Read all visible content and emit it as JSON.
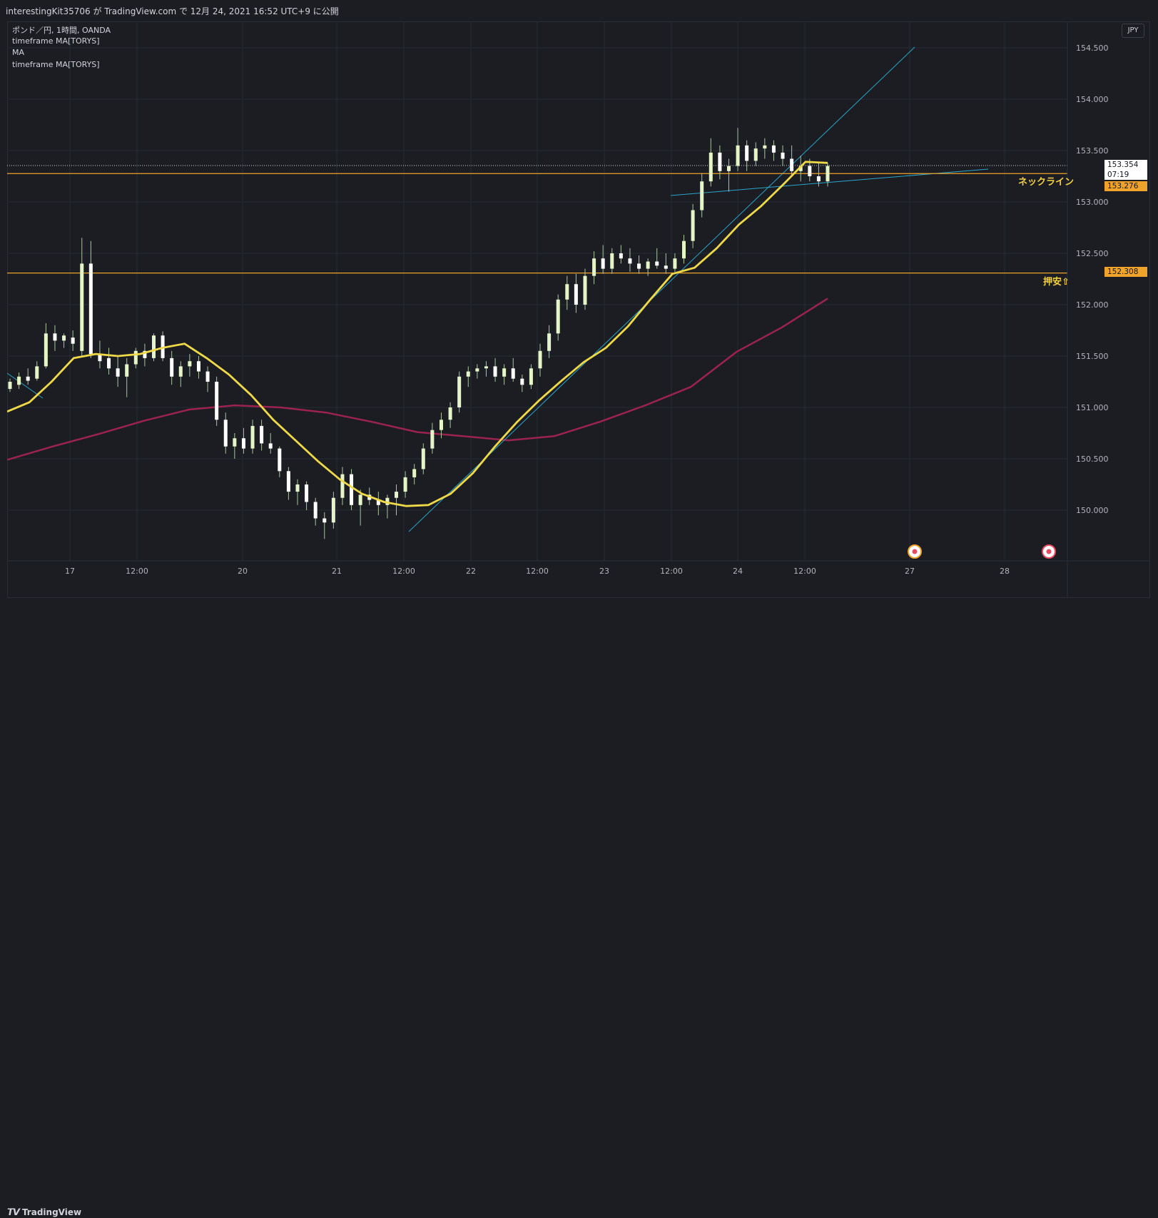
{
  "header": {
    "publish_info": "interestingKit35706 が TradingView.com で 12月 24, 2021 16:52 UTC+9 に公開"
  },
  "legend": {
    "symbol": "ポンド／円, 1時間, OANDA",
    "ind1": "timeframe MA[TORYS]",
    "ind2": "MA",
    "ind3": "timeframe MA[TORYS]"
  },
  "currency": "JPY",
  "price_labels": {
    "current": "153.354",
    "countdown": "07:19",
    "neckline_price": "153.276",
    "support_price": "152.308"
  },
  "annotations": {
    "neckline": "ネックライン",
    "support": "押安⇧"
  },
  "footer": {
    "brand": "TradingView"
  },
  "colors": {
    "up": "#e6f5c8",
    "down": "#ffffff",
    "wick": "#a8c6a0",
    "ma_fast": "#f0d948",
    "ma_slow": "#9c2250",
    "hline": "#f0a32a",
    "trend": "#2aa5c9",
    "grid": "#262a34"
  },
  "chart_data": {
    "type": "candlestick",
    "y_ticks": [
      "154.500",
      "154.000",
      "153.500",
      "153.000",
      "152.500",
      "152.000",
      "151.500",
      "151.000",
      "150.500",
      "150.000"
    ],
    "x_ticks": [
      "17",
      "12:00",
      "20",
      "21",
      "12:00",
      "22",
      "12:00",
      "23",
      "12:00",
      "24",
      "12:00",
      "27",
      "28"
    ],
    "ylim": [
      149.45,
      154.95
    ],
    "horizontal_levels": [
      {
        "price": 153.276,
        "label": "ネックライン"
      },
      {
        "price": 152.308,
        "label": "押安⇧"
      }
    ],
    "current_price": 153.354,
    "candles": [
      [
        151.18,
        151.28,
        151.15,
        151.25
      ],
      [
        151.22,
        151.34,
        151.18,
        151.3
      ],
      [
        151.3,
        151.38,
        151.22,
        151.26
      ],
      [
        151.28,
        151.45,
        151.26,
        151.4
      ],
      [
        151.4,
        151.82,
        151.38,
        151.72
      ],
      [
        151.72,
        151.8,
        151.55,
        151.65
      ],
      [
        151.65,
        151.72,
        151.58,
        151.7
      ],
      [
        151.68,
        151.75,
        151.55,
        151.62
      ],
      [
        151.55,
        152.65,
        151.5,
        152.4
      ],
      [
        152.4,
        152.62,
        151.48,
        151.52
      ],
      [
        151.52,
        151.65,
        151.38,
        151.45
      ],
      [
        151.48,
        151.58,
        151.32,
        151.38
      ],
      [
        151.38,
        151.5,
        151.2,
        151.3
      ],
      [
        151.3,
        151.48,
        151.1,
        151.42
      ],
      [
        151.42,
        151.58,
        151.38,
        151.55
      ],
      [
        151.55,
        151.62,
        151.4,
        151.48
      ],
      [
        151.48,
        151.72,
        151.45,
        151.7
      ],
      [
        151.7,
        151.74,
        151.45,
        151.48
      ],
      [
        151.48,
        151.55,
        151.22,
        151.3
      ],
      [
        151.3,
        151.45,
        151.2,
        151.4
      ],
      [
        151.4,
        151.52,
        151.3,
        151.45
      ],
      [
        151.45,
        151.5,
        151.28,
        151.35
      ],
      [
        151.35,
        151.4,
        151.15,
        151.25
      ],
      [
        151.25,
        151.3,
        150.82,
        150.88
      ],
      [
        150.88,
        150.95,
        150.55,
        150.62
      ],
      [
        150.62,
        150.75,
        150.5,
        150.7
      ],
      [
        150.7,
        150.8,
        150.55,
        150.6
      ],
      [
        150.6,
        150.88,
        150.55,
        150.82
      ],
      [
        150.82,
        150.88,
        150.58,
        150.65
      ],
      [
        150.65,
        150.75,
        150.55,
        150.6
      ],
      [
        150.6,
        150.62,
        150.32,
        150.38
      ],
      [
        150.38,
        150.42,
        150.1,
        150.18
      ],
      [
        150.18,
        150.3,
        150.05,
        150.25
      ],
      [
        150.25,
        150.28,
        150.0,
        150.08
      ],
      [
        150.08,
        150.12,
        149.85,
        149.92
      ],
      [
        149.92,
        149.98,
        149.72,
        149.88
      ],
      [
        149.88,
        150.18,
        149.82,
        150.12
      ],
      [
        150.12,
        150.42,
        150.05,
        150.35
      ],
      [
        150.35,
        150.4,
        150.0,
        150.05
      ],
      [
        150.05,
        150.2,
        149.85,
        150.15
      ],
      [
        150.15,
        150.22,
        150.05,
        150.1
      ],
      [
        150.1,
        150.18,
        149.95,
        150.05
      ],
      [
        150.05,
        150.15,
        149.92,
        150.12
      ],
      [
        150.12,
        150.25,
        149.95,
        150.18
      ],
      [
        150.18,
        150.38,
        150.12,
        150.32
      ],
      [
        150.32,
        150.45,
        150.25,
        150.4
      ],
      [
        150.4,
        150.65,
        150.35,
        150.6
      ],
      [
        150.6,
        150.85,
        150.55,
        150.78
      ],
      [
        150.78,
        150.95,
        150.7,
        150.88
      ],
      [
        150.88,
        151.05,
        150.8,
        151.0
      ],
      [
        151.0,
        151.35,
        150.95,
        151.3
      ],
      [
        151.3,
        151.4,
        151.2,
        151.35
      ],
      [
        151.35,
        151.42,
        151.28,
        151.38
      ],
      [
        151.38,
        151.45,
        151.3,
        151.4
      ],
      [
        151.4,
        151.48,
        151.25,
        151.3
      ],
      [
        151.3,
        151.42,
        151.22,
        151.38
      ],
      [
        151.38,
        151.48,
        151.25,
        151.28
      ],
      [
        151.28,
        151.32,
        151.15,
        151.22
      ],
      [
        151.22,
        151.42,
        151.18,
        151.38
      ],
      [
        151.38,
        151.62,
        151.3,
        151.55
      ],
      [
        151.55,
        151.8,
        151.48,
        151.72
      ],
      [
        151.72,
        152.1,
        151.65,
        152.05
      ],
      [
        152.05,
        152.28,
        151.95,
        152.2
      ],
      [
        152.2,
        152.3,
        151.92,
        152.0
      ],
      [
        152.0,
        152.35,
        151.95,
        152.28
      ],
      [
        152.28,
        152.52,
        152.2,
        152.45
      ],
      [
        152.45,
        152.58,
        152.3,
        152.35
      ],
      [
        152.35,
        152.55,
        152.3,
        152.5
      ],
      [
        152.5,
        152.58,
        152.4,
        152.45
      ],
      [
        152.45,
        152.55,
        152.32,
        152.4
      ],
      [
        152.4,
        152.48,
        152.3,
        152.35
      ],
      [
        152.35,
        152.45,
        152.28,
        152.42
      ],
      [
        152.42,
        152.55,
        152.35,
        152.38
      ],
      [
        152.38,
        152.5,
        152.3,
        152.35
      ],
      [
        152.35,
        152.5,
        152.32,
        152.45
      ],
      [
        152.45,
        152.68,
        152.4,
        152.62
      ],
      [
        152.62,
        152.98,
        152.55,
        152.92
      ],
      [
        152.92,
        153.28,
        152.85,
        153.2
      ],
      [
        153.2,
        153.62,
        153.15,
        153.48
      ],
      [
        153.48,
        153.55,
        153.22,
        153.3
      ],
      [
        153.3,
        153.42,
        153.1,
        153.35
      ],
      [
        153.35,
        153.72,
        153.3,
        153.55
      ],
      [
        153.55,
        153.6,
        153.3,
        153.4
      ],
      [
        153.4,
        153.58,
        153.35,
        153.52
      ],
      [
        153.52,
        153.62,
        153.42,
        153.55
      ],
      [
        153.55,
        153.6,
        153.4,
        153.48
      ],
      [
        153.48,
        153.55,
        153.35,
        153.42
      ],
      [
        153.42,
        153.55,
        153.25,
        153.3
      ],
      [
        153.3,
        153.45,
        153.2,
        153.35
      ],
      [
        153.35,
        153.42,
        153.2,
        153.25
      ],
      [
        153.25,
        153.38,
        153.15,
        153.2
      ],
      [
        153.2,
        153.38,
        153.15,
        153.35
      ]
    ],
    "ma_fast": [
      150.96,
      151.05,
      151.25,
      151.48,
      151.52,
      151.5,
      151.52,
      151.58,
      151.62,
      151.48,
      151.32,
      151.12,
      150.88,
      150.68,
      150.48,
      150.3,
      150.16,
      150.08,
      150.04,
      150.05,
      150.16,
      150.36,
      150.62,
      150.86,
      151.07,
      151.26,
      151.44,
      151.58,
      151.79,
      152.05,
      152.3,
      152.36,
      152.55,
      152.78,
      152.96,
      153.17,
      153.39,
      153.38
    ],
    "ma_slow": [
      150.49,
      150.62,
      150.74,
      150.87,
      150.98,
      151.02,
      151.0,
      150.95,
      150.86,
      150.76,
      150.72,
      150.68,
      150.72,
      150.86,
      151.02,
      151.2,
      151.54,
      151.78,
      152.06
    ]
  }
}
